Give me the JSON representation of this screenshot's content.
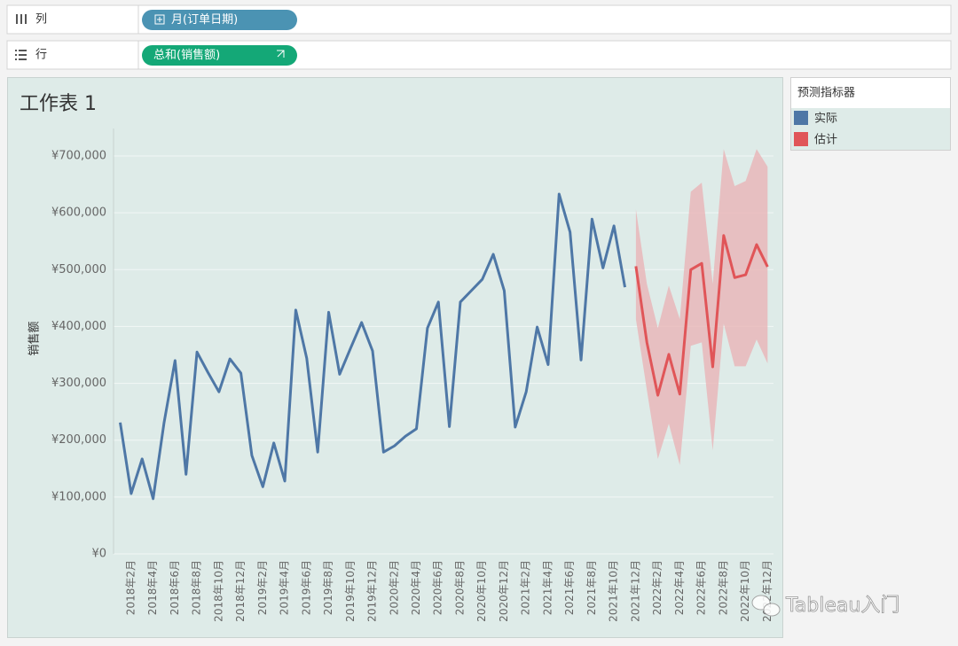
{
  "shelves": {
    "columns": {
      "label": "列",
      "pill": "月(订单日期)"
    },
    "rows": {
      "label": "行",
      "pill": "总和(销售额)"
    }
  },
  "legend": {
    "title": "预测指标器"
  },
  "watermark": "Tableau入门",
  "chart_data": {
    "type": "line",
    "title": "工作表 1",
    "y_label": "销售额",
    "categories": [
      null,
      "2018年2月",
      null,
      "2018年4月",
      null,
      "2018年6月",
      null,
      "2018年8月",
      null,
      "2018年10月",
      null,
      "2018年12月",
      null,
      "2019年2月",
      null,
      "2019年4月",
      null,
      "2019年6月",
      null,
      "2019年8月",
      null,
      "2019年10月",
      null,
      "2019年12月",
      null,
      "2020年2月",
      null,
      "2020年4月",
      null,
      "2020年6月",
      null,
      "2020年8月",
      null,
      "2020年10月",
      null,
      "2020年12月",
      null,
      "2021年2月",
      null,
      "2021年4月",
      null,
      "2021年6月",
      null,
      "2021年8月",
      null,
      "2021年10月",
      null,
      "2021年12月",
      null,
      "2022年2月",
      null,
      "2022年4月",
      null,
      "2022年6月",
      null,
      "2022年8月",
      null,
      "2022年10月",
      null,
      "2022年12月"
    ],
    "series": [
      {
        "name": "实际",
        "color": "#4e77a6",
        "values": [
          231000,
          106000,
          167000,
          97000,
          231000,
          340000,
          140000,
          355000,
          319000,
          285000,
          343000,
          318000,
          173000,
          118000,
          195000,
          128000,
          429000,
          344000,
          179000,
          425000,
          316000,
          362000,
          407000,
          357000,
          179000,
          190000,
          207000,
          220000,
          397000,
          443000,
          224000,
          443000,
          463000,
          483000,
          527000,
          463000,
          223000,
          285000,
          399000,
          333000,
          633000,
          566000,
          341000,
          589000,
          503000,
          577000,
          469000,
          null,
          null,
          null,
          null,
          null,
          null,
          null,
          null,
          null,
          null,
          null,
          null,
          null
        ]
      },
      {
        "name": "估计",
        "color": "#e05558",
        "values": [
          null,
          null,
          null,
          null,
          null,
          null,
          null,
          null,
          null,
          null,
          null,
          null,
          null,
          null,
          null,
          null,
          null,
          null,
          null,
          null,
          null,
          null,
          null,
          null,
          null,
          null,
          null,
          null,
          null,
          null,
          null,
          null,
          null,
          null,
          null,
          null,
          null,
          null,
          null,
          null,
          null,
          null,
          null,
          null,
          null,
          null,
          null,
          506000,
          372000,
          279000,
          351000,
          281000,
          500000,
          511000,
          329000,
          560000,
          486000,
          491000,
          544000,
          505000
        ]
      }
    ],
    "band": {
      "color": "#e8b4b6",
      "upper": [
        null,
        null,
        null,
        null,
        null,
        null,
        null,
        null,
        null,
        null,
        null,
        null,
        null,
        null,
        null,
        null,
        null,
        null,
        null,
        null,
        null,
        null,
        null,
        null,
        null,
        null,
        null,
        null,
        null,
        null,
        null,
        null,
        null,
        null,
        null,
        null,
        null,
        null,
        null,
        null,
        null,
        null,
        null,
        null,
        null,
        null,
        null,
        606000,
        475000,
        397000,
        472000,
        413000,
        637000,
        653000,
        475000,
        712000,
        647000,
        656000,
        712000,
        681000
      ],
      "lower": [
        null,
        null,
        null,
        null,
        null,
        null,
        null,
        null,
        null,
        null,
        null,
        null,
        null,
        null,
        null,
        null,
        null,
        null,
        null,
        null,
        null,
        null,
        null,
        null,
        null,
        null,
        null,
        null,
        null,
        null,
        null,
        null,
        null,
        null,
        null,
        null,
        null,
        null,
        null,
        null,
        null,
        null,
        null,
        null,
        null,
        null,
        null,
        413000,
        288000,
        167000,
        229000,
        156000,
        366000,
        372000,
        182000,
        405000,
        330000,
        330000,
        377000,
        335000
      ]
    },
    "ylim": [
      0,
      700000
    ],
    "yticks": [
      {
        "value": 0,
        "label": "¥0"
      },
      {
        "value": 100000,
        "label": "¥100,000"
      },
      {
        "value": 200000,
        "label": "¥200,000"
      },
      {
        "value": 300000,
        "label": "¥300,000"
      },
      {
        "value": 400000,
        "label": "¥400,000"
      },
      {
        "value": 500000,
        "label": "¥500,000"
      },
      {
        "value": 600000,
        "label": "¥600,000"
      },
      {
        "value": 700000,
        "label": "¥700,000"
      }
    ],
    "grid": true
  }
}
